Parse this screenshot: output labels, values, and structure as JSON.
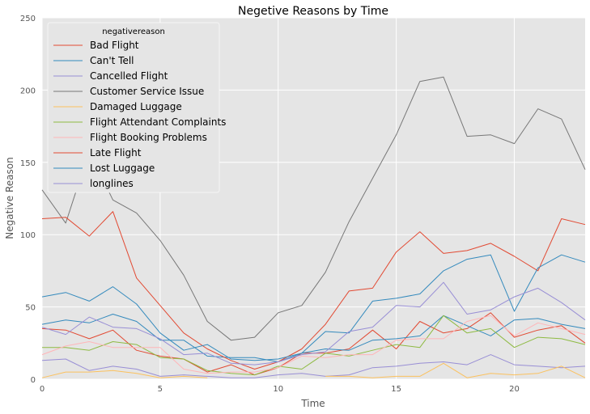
{
  "chart_data": {
    "type": "line",
    "title": "Negetive Reasons by Time",
    "xlabel": "Time",
    "ylabel": "Negative Reason",
    "xlim": [
      0,
      23
    ],
    "ylim": [
      0,
      250
    ],
    "xticks": [
      0,
      5,
      10,
      15,
      20
    ],
    "yticks": [
      0,
      50,
      100,
      150,
      200,
      250
    ],
    "grid": true,
    "legend_title": "negativereason",
    "legend_position": "upper-left",
    "x": [
      0,
      1,
      2,
      3,
      4,
      5,
      6,
      7,
      8,
      9,
      10,
      11,
      12,
      13,
      14,
      15,
      16,
      17,
      18,
      19,
      20,
      21,
      22,
      23
    ],
    "series": [
      {
        "name": "Bad Flight",
        "color": "#E24A33",
        "values": [
          35,
          34,
          28,
          34,
          20,
          16,
          14,
          5,
          10,
          3,
          8,
          18,
          18,
          21,
          34,
          21,
          40,
          32,
          35,
          46,
          29,
          34,
          37,
          25
        ]
      },
      {
        "name": "Can't Tell",
        "color": "#348ABD",
        "values": [
          38,
          41,
          39,
          45,
          40,
          27,
          27,
          16,
          15,
          15,
          12,
          18,
          21,
          20,
          27,
          28,
          30,
          44,
          37,
          30,
          41,
          42,
          38,
          35
        ]
      },
      {
        "name": "Cancelled Flight",
        "color": "#988ED5",
        "values": [
          13,
          14,
          6,
          9,
          7,
          2,
          3,
          2,
          1,
          1,
          3,
          4,
          2,
          3,
          8,
          9,
          11,
          12,
          10,
          17,
          10,
          9,
          8,
          9
        ]
      },
      {
        "name": "Customer Service Issue",
        "color": "#777777",
        "values": [
          131,
          108,
          158,
          124,
          115,
          96,
          72,
          40,
          27,
          29,
          46,
          51,
          74,
          109,
          139,
          169,
          206,
          209,
          168,
          169,
          163,
          187,
          180,
          145
        ]
      },
      {
        "name": "Damaged Luggage",
        "color": "#FBC15E",
        "values": [
          1,
          5,
          5,
          6,
          4,
          1,
          2,
          1,
          null,
          null,
          null,
          null,
          2,
          2,
          1,
          2,
          2,
          11,
          1,
          4,
          3,
          4,
          9,
          1
        ]
      },
      {
        "name": "Flight Attendant Complaints",
        "color": "#8EBA42",
        "values": [
          22,
          22,
          20,
          26,
          24,
          15,
          14,
          6,
          4,
          3,
          9,
          7,
          18,
          16,
          20,
          24,
          22,
          44,
          32,
          35,
          22,
          29,
          28,
          24
        ]
      },
      {
        "name": "Flight Booking Problems",
        "color": "#FFB5B8",
        "values": [
          17,
          23,
          26,
          22,
          22,
          22,
          7,
          4,
          5,
          5,
          8,
          16,
          15,
          17,
          17,
          27,
          28,
          28,
          40,
          44,
          30,
          39,
          35,
          31
        ]
      },
      {
        "name": "Late Flight",
        "color": "#E24A33",
        "values": [
          111,
          112,
          99,
          116,
          70,
          51,
          32,
          21,
          13,
          7,
          12,
          21,
          38,
          61,
          63,
          88,
          102,
          87,
          89,
          94,
          85,
          75,
          111,
          107
        ]
      },
      {
        "name": "Lost Luggage",
        "color": "#348ABD",
        "values": [
          57,
          60,
          54,
          64,
          52,
          32,
          20,
          24,
          14,
          13,
          14,
          18,
          33,
          32,
          54,
          56,
          59,
          75,
          83,
          86,
          47,
          77,
          86,
          81
        ]
      },
      {
        "name": "longlines",
        "color": "#988ED5",
        "values": [
          36,
          31,
          43,
          36,
          35,
          28,
          17,
          18,
          11,
          10,
          12,
          17,
          19,
          33,
          36,
          51,
          50,
          67,
          45,
          48,
          57,
          63,
          53,
          41
        ]
      }
    ]
  }
}
